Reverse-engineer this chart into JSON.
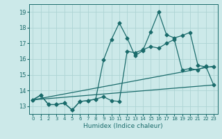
{
  "xlabel": "Humidex (Indice chaleur)",
  "bg_color": "#cce9e9",
  "grid_color": "#aed4d4",
  "line_color": "#1a6b6b",
  "xlim": [
    -0.5,
    23.5
  ],
  "ylim": [
    12.5,
    19.5
  ],
  "xticks": [
    0,
    1,
    2,
    3,
    4,
    5,
    6,
    7,
    8,
    9,
    10,
    11,
    12,
    13,
    14,
    15,
    16,
    17,
    18,
    19,
    20,
    21,
    22,
    23
  ],
  "yticks": [
    13,
    14,
    15,
    16,
    17,
    18,
    19
  ],
  "line1_x": [
    0,
    1,
    2,
    3,
    4,
    5,
    6,
    7,
    8,
    9,
    10,
    11,
    12,
    13,
    14,
    15,
    16,
    17,
    18,
    19,
    20,
    21,
    22,
    23
  ],
  "line1_y": [
    13.4,
    13.7,
    13.1,
    13.1,
    13.2,
    12.75,
    13.3,
    13.35,
    13.45,
    15.95,
    17.25,
    18.3,
    17.35,
    16.2,
    16.55,
    17.75,
    19.0,
    17.55,
    17.35,
    17.5,
    17.7,
    15.6,
    15.5,
    15.5
  ],
  "line2_x": [
    0,
    1,
    2,
    3,
    4,
    5,
    6,
    7,
    8,
    9,
    10,
    11,
    12,
    13,
    14,
    15,
    16,
    17,
    18,
    19,
    20,
    21,
    22,
    23
  ],
  "line2_y": [
    13.4,
    13.7,
    13.1,
    13.1,
    13.2,
    12.75,
    13.3,
    13.35,
    13.45,
    13.6,
    13.35,
    13.3,
    16.5,
    16.4,
    16.6,
    16.8,
    16.7,
    17.0,
    17.25,
    15.3,
    15.4,
    15.3,
    15.55,
    14.35
  ],
  "line3_x": [
    0,
    23
  ],
  "line3_y": [
    13.4,
    14.35
  ],
  "line4_x": [
    0,
    23
  ],
  "line4_y": [
    13.4,
    15.55
  ],
  "marker": "D",
  "markersize": 2.5,
  "linewidth": 0.9
}
